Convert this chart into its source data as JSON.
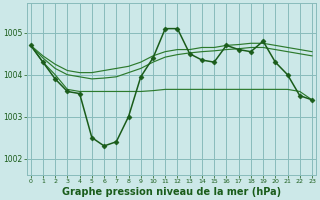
{
  "bg_color": "#cce8e8",
  "grid_color": "#88bbbb",
  "line_dark": "#1a5c1a",
  "line_mid": "#2d7a2d",
  "xlabel": "Graphe pression niveau de la mer (hPa)",
  "xlabel_fontsize": 7.0,
  "ylim": [
    1001.6,
    1005.7
  ],
  "xlim": [
    -0.3,
    23.3
  ],
  "yticks": [
    1002,
    1003,
    1004,
    1005
  ],
  "xticks": [
    0,
    1,
    2,
    3,
    4,
    5,
    6,
    7,
    8,
    9,
    10,
    11,
    12,
    13,
    14,
    15,
    16,
    17,
    18,
    19,
    20,
    21,
    22,
    23
  ],
  "main_x": [
    0,
    1,
    2,
    3,
    4,
    5,
    6,
    7,
    8,
    9,
    10,
    11,
    12,
    13,
    14,
    15,
    16,
    17,
    18,
    19,
    20,
    21,
    22,
    23
  ],
  "main_y": [
    1004.7,
    1004.3,
    1003.9,
    1003.6,
    1003.55,
    1002.5,
    1002.3,
    1002.4,
    1003.0,
    1003.95,
    1004.4,
    1005.1,
    1005.1,
    1004.5,
    1004.35,
    1004.3,
    1004.7,
    1004.6,
    1004.55,
    1004.8,
    1004.3,
    1004.0,
    1003.5,
    1003.4
  ],
  "upper_x": [
    0,
    1,
    2,
    3,
    4,
    5,
    6,
    7,
    8,
    9,
    10,
    11,
    12,
    13,
    14,
    15,
    16,
    17,
    18,
    19,
    20,
    21,
    22,
    23
  ],
  "upper_y": [
    1004.7,
    1004.45,
    1004.25,
    1004.1,
    1004.05,
    1004.05,
    1004.1,
    1004.15,
    1004.2,
    1004.3,
    1004.45,
    1004.55,
    1004.6,
    1004.6,
    1004.65,
    1004.65,
    1004.7,
    1004.72,
    1004.75,
    1004.75,
    1004.7,
    1004.65,
    1004.6,
    1004.55
  ],
  "upper2_x": [
    0,
    1,
    2,
    3,
    4,
    5,
    6,
    7,
    8,
    9,
    10,
    11,
    12,
    13,
    14,
    15,
    16,
    17,
    18,
    19,
    20,
    21,
    22,
    23
  ],
  "upper2_y": [
    1004.7,
    1004.4,
    1004.15,
    1004.0,
    1003.95,
    1003.9,
    1003.92,
    1003.95,
    1004.05,
    1004.15,
    1004.3,
    1004.42,
    1004.48,
    1004.52,
    1004.55,
    1004.57,
    1004.6,
    1004.62,
    1004.65,
    1004.65,
    1004.6,
    1004.55,
    1004.5,
    1004.45
  ],
  "lower_x": [
    0,
    1,
    2,
    3,
    4,
    5,
    6,
    7,
    8,
    9,
    10,
    11,
    12,
    13,
    14,
    15,
    16,
    17,
    18,
    19,
    20,
    21,
    22,
    23
  ],
  "lower_y": [
    1004.7,
    1004.3,
    1004.0,
    1003.65,
    1003.6,
    1003.6,
    1003.6,
    1003.6,
    1003.6,
    1003.6,
    1003.62,
    1003.65,
    1003.65,
    1003.65,
    1003.65,
    1003.65,
    1003.65,
    1003.65,
    1003.65,
    1003.65,
    1003.65,
    1003.65,
    1003.6,
    1003.4
  ]
}
